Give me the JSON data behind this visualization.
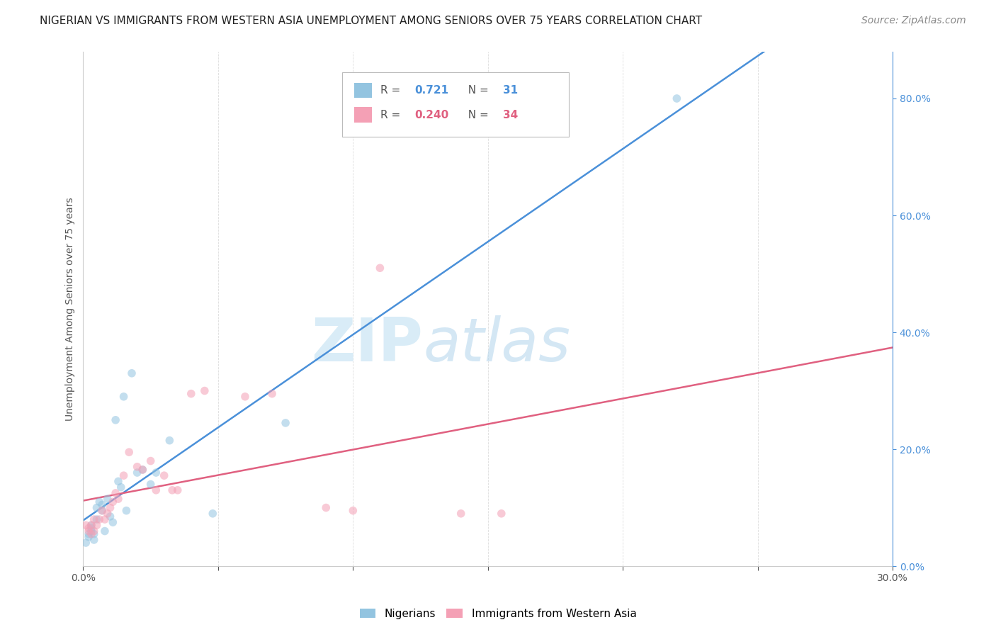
{
  "title": "NIGERIAN VS IMMIGRANTS FROM WESTERN ASIA UNEMPLOYMENT AMONG SENIORS OVER 75 YEARS CORRELATION CHART",
  "source": "Source: ZipAtlas.com",
  "ylabel": "Unemployment Among Seniors over 75 years",
  "xmin": 0.0,
  "xmax": 0.3,
  "ymin": 0.0,
  "ymax": 0.88,
  "right_yticks": [
    0.0,
    0.2,
    0.4,
    0.6,
    0.8
  ],
  "right_yticklabels": [
    "0.0%",
    "20.0%",
    "40.0%",
    "60.0%",
    "80.0%"
  ],
  "bottom_xticks": [
    0.0,
    0.05,
    0.1,
    0.15,
    0.2,
    0.25,
    0.3
  ],
  "bottom_xticklabels": [
    "0.0%",
    "",
    "",
    "",
    "",
    "",
    "30.0%"
  ],
  "nigerians_x": [
    0.001,
    0.002,
    0.002,
    0.003,
    0.003,
    0.003,
    0.004,
    0.004,
    0.005,
    0.005,
    0.006,
    0.007,
    0.007,
    0.008,
    0.009,
    0.01,
    0.011,
    0.012,
    0.013,
    0.014,
    0.015,
    0.016,
    0.018,
    0.02,
    0.022,
    0.025,
    0.027,
    0.032,
    0.048,
    0.075,
    0.22
  ],
  "nigerians_y": [
    0.04,
    0.05,
    0.055,
    0.06,
    0.065,
    0.07,
    0.045,
    0.055,
    0.1,
    0.08,
    0.11,
    0.095,
    0.105,
    0.06,
    0.115,
    0.085,
    0.075,
    0.25,
    0.145,
    0.135,
    0.29,
    0.095,
    0.33,
    0.16,
    0.165,
    0.14,
    0.16,
    0.215,
    0.09,
    0.245,
    0.8
  ],
  "western_asia_x": [
    0.001,
    0.002,
    0.002,
    0.003,
    0.003,
    0.004,
    0.004,
    0.005,
    0.006,
    0.007,
    0.008,
    0.009,
    0.01,
    0.011,
    0.012,
    0.013,
    0.015,
    0.017,
    0.02,
    0.022,
    0.025,
    0.027,
    0.03,
    0.033,
    0.035,
    0.04,
    0.045,
    0.06,
    0.07,
    0.09,
    0.1,
    0.11,
    0.14,
    0.155
  ],
  "western_asia_y": [
    0.07,
    0.06,
    0.065,
    0.055,
    0.07,
    0.06,
    0.08,
    0.07,
    0.08,
    0.095,
    0.08,
    0.09,
    0.1,
    0.11,
    0.125,
    0.115,
    0.155,
    0.195,
    0.17,
    0.165,
    0.18,
    0.13,
    0.155,
    0.13,
    0.13,
    0.295,
    0.3,
    0.29,
    0.295,
    0.1,
    0.095,
    0.51,
    0.09,
    0.09
  ],
  "nigerian_color": "#93c4e0",
  "western_asia_color": "#f4a0b5",
  "nigerian_line_color": "#4a90d9",
  "western_asia_line_color": "#e06080",
  "nigerian_R": 0.721,
  "nigerian_N": 31,
  "western_asia_R": 0.24,
  "western_asia_N": 34,
  "bg_color": "#ffffff",
  "watermark_zip": "ZIP",
  "watermark_atlas": "atlas",
  "scatter_size": 70,
  "scatter_alpha": 0.55,
  "line_width": 1.8,
  "grid_color": "#dddddd",
  "title_fontsize": 11,
  "source_fontsize": 10,
  "tick_fontsize": 10,
  "ylabel_fontsize": 10
}
